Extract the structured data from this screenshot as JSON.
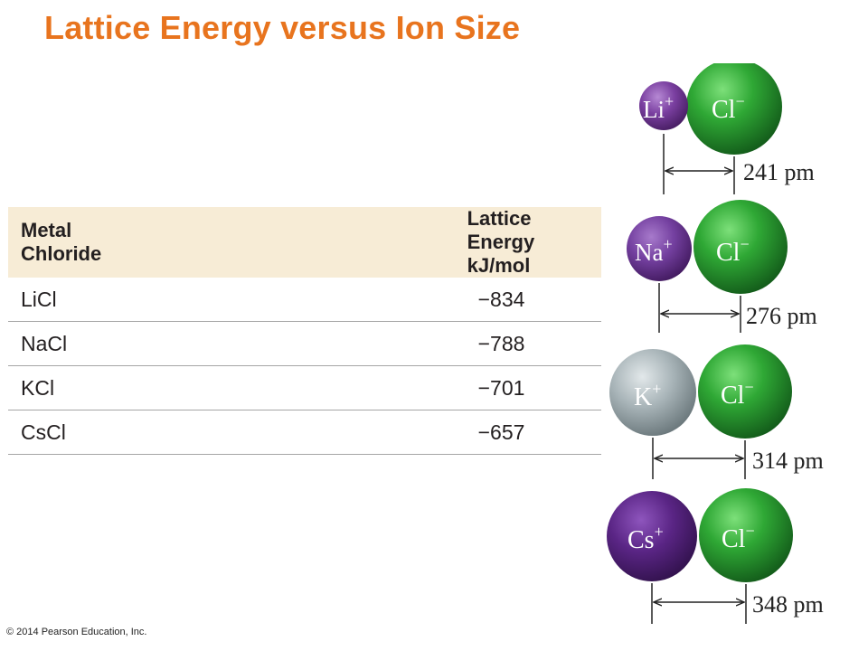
{
  "title": "Lattice Energy versus Ion Size",
  "table": {
    "headers": [
      "Metal Chloride",
      "Lattice Energy kJ/mol"
    ],
    "rows": [
      {
        "compound": "LiCl",
        "energy": "−834"
      },
      {
        "compound": "NaCl",
        "energy": "−788"
      },
      {
        "compound": "KCl",
        "energy": "−701"
      },
      {
        "compound": "CsCl",
        "energy": "−657"
      }
    ]
  },
  "ion_pairs": [
    {
      "cation": "Li",
      "anion": "Cl",
      "distance": "241 pm"
    },
    {
      "cation": "Na",
      "anion": "Cl",
      "distance": "276 pm"
    },
    {
      "cation": "K",
      "anion": "Cl",
      "distance": "314 pm"
    },
    {
      "cation": "Cs",
      "anion": "Cl",
      "distance": "348 pm"
    }
  ],
  "charges": {
    "plus": "+",
    "minus": "−"
  },
  "colors": {
    "title": "#e8741e",
    "header_bg": "#f7ecd6",
    "chloride": "#2e9e35",
    "lithium": "#7a3fa0",
    "sodium": "#7440a0",
    "potassium": "#a8b4b8",
    "cesium": "#5a2585"
  },
  "copyright": "© 2014 Pearson Education, Inc."
}
